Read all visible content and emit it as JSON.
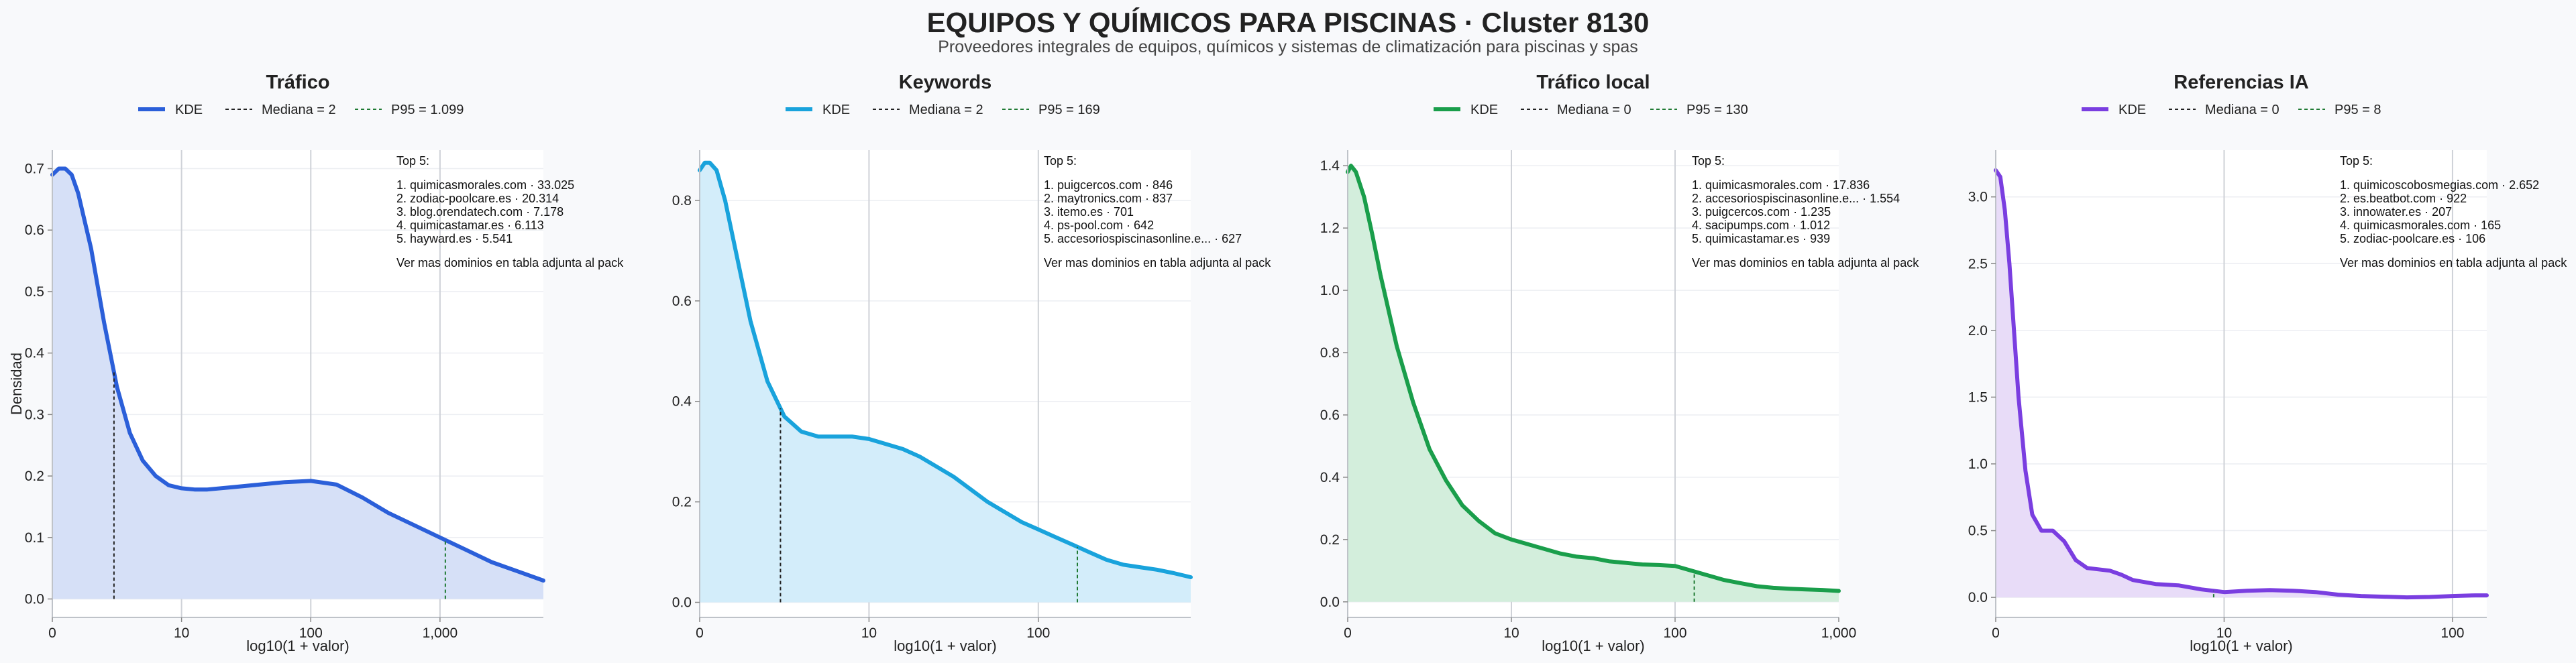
{
  "header": {
    "title": "EQUIPOS Y QUÍMICOS PARA PISCINAS · Cluster 8130",
    "subtitle": "Proveedores integrales de equipos, químicos y sistemas de climatización para piscinas y spas"
  },
  "chart_data": [
    {
      "type": "area",
      "title": "Tráfico",
      "xlabel": "log10(1 + valor)",
      "ylabel": "Densidad",
      "color": "#2b5fd9",
      "fill": "#d6e0f7",
      "x_scale": "log10(1+x)",
      "xlim": [
        0,
        3.8
      ],
      "ylim": [
        -0.03,
        0.73
      ],
      "xticks": [
        0,
        1,
        2,
        3
      ],
      "xtick_labels": [
        "0",
        "10",
        "100",
        "1,000"
      ],
      "yticks": [
        0,
        0.1,
        0.2,
        0.3,
        0.4,
        0.5,
        0.6,
        0.7
      ],
      "ytick_labels": [
        "0.0",
        "0.1",
        "0.2",
        "0.3",
        "0.4",
        "0.5",
        "0.6",
        "0.7"
      ],
      "grid": true,
      "legend": [
        "KDE",
        "Mediana = 2",
        "P95 = 1.099"
      ],
      "median_x": 2,
      "p95_x": 1099,
      "series": [
        {
          "x": [
            0,
            0.05,
            0.1,
            0.15,
            0.2,
            0.3,
            0.4,
            0.5,
            0.6,
            0.7,
            0.8,
            0.9,
            1.0,
            1.1,
            1.2,
            1.4,
            1.6,
            1.8,
            2.0,
            2.2,
            2.4,
            2.6,
            2.8,
            3.0,
            3.2,
            3.4,
            3.6,
            3.8
          ],
          "y": [
            0.69,
            0.7,
            0.7,
            0.69,
            0.66,
            0.57,
            0.45,
            0.345,
            0.27,
            0.225,
            0.2,
            0.185,
            0.18,
            0.178,
            0.178,
            0.182,
            0.186,
            0.19,
            0.192,
            0.186,
            0.165,
            0.14,
            0.12,
            0.1,
            0.08,
            0.06,
            0.045,
            0.03
          ]
        }
      ],
      "annotation": {
        "title": "Top 5:",
        "items": [
          "1. quimicasmorales.com · 33.025",
          "2. zodiac-poolcare.es · 20.314",
          "3. blog.orendatech.com · 7.178",
          "4. quimicastamar.es · 6.113",
          "5. hayward.es · 5.541"
        ],
        "footer": "Ver mas dominios en tabla adjunta al pack"
      }
    },
    {
      "type": "area",
      "title": "Keywords",
      "xlabel": "log10(1 + valor)",
      "ylabel": "",
      "color": "#19a3dc",
      "fill": "#d3edfa",
      "x_scale": "log10(1+x)",
      "xlim": [
        0,
        2.9
      ],
      "ylim": [
        -0.03,
        0.9
      ],
      "xticks": [
        0,
        1,
        2
      ],
      "xtick_labels": [
        "0",
        "10",
        "100"
      ],
      "yticks": [
        0,
        0.2,
        0.4,
        0.6,
        0.8
      ],
      "ytick_labels": [
        "0.0",
        "0.2",
        "0.4",
        "0.6",
        "0.8"
      ],
      "grid": true,
      "legend": [
        "KDE",
        "Mediana = 2",
        "P95 = 169"
      ],
      "median_x": 2,
      "p95_x": 169,
      "series": [
        {
          "x": [
            0,
            0.03,
            0.06,
            0.1,
            0.15,
            0.2,
            0.3,
            0.4,
            0.5,
            0.6,
            0.7,
            0.8,
            0.9,
            1.0,
            1.1,
            1.2,
            1.3,
            1.4,
            1.5,
            1.6,
            1.7,
            1.8,
            1.9,
            2.0,
            2.1,
            2.2,
            2.3,
            2.4,
            2.5,
            2.6,
            2.7,
            2.8,
            2.9
          ],
          "y": [
            0.86,
            0.875,
            0.875,
            0.86,
            0.8,
            0.72,
            0.56,
            0.44,
            0.37,
            0.34,
            0.33,
            0.33,
            0.33,
            0.325,
            0.315,
            0.305,
            0.29,
            0.27,
            0.25,
            0.225,
            0.2,
            0.18,
            0.16,
            0.145,
            0.13,
            0.115,
            0.1,
            0.085,
            0.075,
            0.07,
            0.065,
            0.058,
            0.05
          ]
        }
      ],
      "annotation": {
        "title": "Top 5:",
        "items": [
          "1. puigcercos.com · 846",
          "2. maytronics.com · 837",
          "3. itemo.es · 701",
          "4. ps-pool.com · 642",
          "5. accesoriospiscinasonline.e... · 627"
        ],
        "footer": "Ver mas dominios en tabla adjunta al pack"
      }
    },
    {
      "type": "area",
      "title": "Tráfico local",
      "xlabel": "log10(1 + valor)",
      "ylabel": "",
      "color": "#1a9e4b",
      "fill": "#d3eedc",
      "x_scale": "log10(1+x)",
      "xlim": [
        0,
        3.0
      ],
      "ylim": [
        -0.05,
        1.45
      ],
      "xticks": [
        0,
        1,
        2,
        3
      ],
      "xtick_labels": [
        "0",
        "10",
        "100",
        "1,000"
      ],
      "yticks": [
        0,
        0.2,
        0.4,
        0.6,
        0.8,
        1.0,
        1.2,
        1.4
      ],
      "ytick_labels": [
        "0.0",
        "0.2",
        "0.4",
        "0.6",
        "0.8",
        "1.0",
        "1.2",
        "1.4"
      ],
      "grid": true,
      "legend": [
        "KDE",
        "Mediana = 0",
        "P95 = 130"
      ],
      "median_x": 0,
      "p95_x": 130,
      "series": [
        {
          "x": [
            0,
            0.02,
            0.05,
            0.1,
            0.15,
            0.2,
            0.3,
            0.4,
            0.5,
            0.6,
            0.7,
            0.8,
            0.9,
            1.0,
            1.1,
            1.2,
            1.3,
            1.4,
            1.5,
            1.6,
            1.7,
            1.8,
            1.9,
            2.0,
            2.1,
            2.2,
            2.3,
            2.4,
            2.5,
            2.6,
            2.7,
            2.8,
            2.9,
            3.0
          ],
          "y": [
            1.38,
            1.4,
            1.38,
            1.3,
            1.18,
            1.05,
            0.82,
            0.64,
            0.49,
            0.39,
            0.31,
            0.26,
            0.22,
            0.2,
            0.185,
            0.17,
            0.155,
            0.145,
            0.14,
            0.13,
            0.125,
            0.12,
            0.118,
            0.115,
            0.1,
            0.085,
            0.07,
            0.06,
            0.05,
            0.045,
            0.042,
            0.04,
            0.038,
            0.035
          ]
        }
      ],
      "annotation": {
        "title": "Top 5:",
        "items": [
          "1. quimicasmorales.com · 17.836",
          "2. accesoriospiscinasonline.e... · 1.554",
          "3. puigcercos.com · 1.235",
          "4. sacipumps.com · 1.012",
          "5. quimicastamar.es · 939"
        ],
        "footer": "Ver mas dominios en tabla adjunta al pack"
      }
    },
    {
      "type": "area",
      "title": "Referencias IA",
      "xlabel": "log10(1 + valor)",
      "ylabel": "",
      "color": "#7a3ee0",
      "fill": "#e8dcf8",
      "x_scale": "log10(1+x)",
      "xlim": [
        0,
        2.15
      ],
      "ylim": [
        -0.15,
        3.35
      ],
      "xticks": [
        0,
        1,
        2
      ],
      "xtick_labels": [
        "0",
        "10",
        "100"
      ],
      "yticks": [
        0,
        0.5,
        1.0,
        1.5,
        2.0,
        2.5,
        3.0
      ],
      "ytick_labels": [
        "0.0",
        "0.5",
        "1.0",
        "1.5",
        "2.0",
        "2.5",
        "3.0"
      ],
      "grid": true,
      "legend": [
        "KDE",
        "Mediana = 0",
        "P95 = 8"
      ],
      "median_x": 0,
      "p95_x": 8,
      "series": [
        {
          "x": [
            0,
            0.02,
            0.04,
            0.06,
            0.08,
            0.1,
            0.13,
            0.16,
            0.2,
            0.25,
            0.3,
            0.35,
            0.4,
            0.45,
            0.5,
            0.55,
            0.6,
            0.7,
            0.8,
            0.9,
            1.0,
            1.1,
            1.2,
            1.3,
            1.4,
            1.5,
            1.6,
            1.7,
            1.8,
            1.9,
            2.0,
            2.1,
            2.15
          ],
          "y": [
            3.2,
            3.15,
            2.9,
            2.5,
            2.0,
            1.5,
            0.95,
            0.62,
            0.5,
            0.5,
            0.42,
            0.28,
            0.22,
            0.21,
            0.2,
            0.17,
            0.13,
            0.1,
            0.09,
            0.06,
            0.04,
            0.05,
            0.055,
            0.05,
            0.04,
            0.02,
            0.01,
            0.005,
            0.0,
            0.003,
            0.01,
            0.015,
            0.015
          ]
        }
      ],
      "annotation": {
        "title": "Top 5:",
        "items": [
          "1. quimicoscobosmegias.com · 2.652",
          "2. es.beatbot.com · 922",
          "3. innowater.es · 207",
          "4. quimicasmorales.com · 165",
          "5. zodiac-poolcare.es · 106"
        ],
        "footer": "Ver mas dominios en tabla adjunta al pack"
      }
    }
  ]
}
